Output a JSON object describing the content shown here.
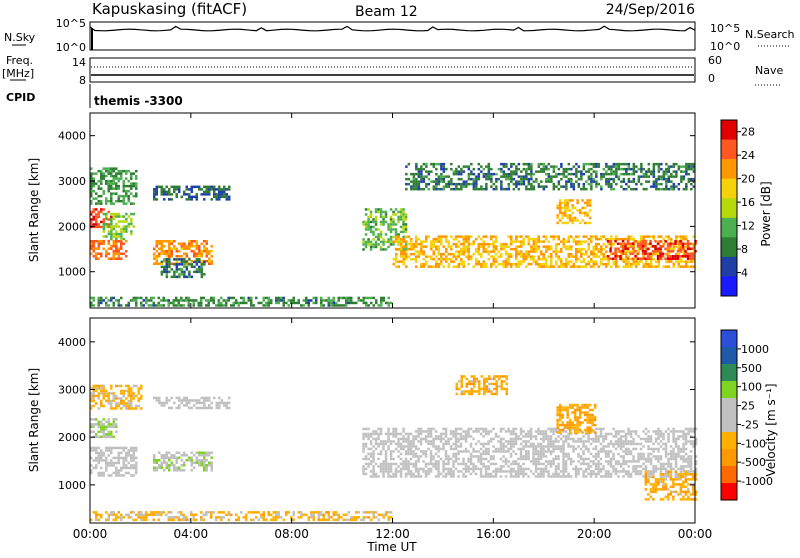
{
  "header": {
    "station": "Kapuskasing (fitACF)",
    "beam": "Beam 12",
    "date": "24/Sep/2016"
  },
  "panels": {
    "nsky_label": "N.Sky",
    "nsky_tick_top": "10^5",
    "nsky_tick_bottom": "10^0",
    "nsearch_label": "N.Search",
    "nsearch_tick_top": "10^5",
    "nsearch_tick_bottom": "10^0",
    "freq_label": "Freq.",
    "freq_unit": "[MHz]",
    "freq_tick_top": "14",
    "freq_tick_bottom": "8",
    "nave_label": "Nave",
    "nave_tick_top": "60",
    "nave_tick_bottom": "0",
    "cpid_label": "CPID",
    "cpid_value": "themis -3300"
  },
  "colors": {
    "power": [
      "#1a1aff",
      "#1f3fa6",
      "#2e7d32",
      "#4caf50",
      "#b5d90a",
      "#f5d20a",
      "#ff9800",
      "#ff5722",
      "#e00000"
    ],
    "velocity": [
      "#ff0000",
      "#ff6a00",
      "#ff9900",
      "#ffb000",
      "#c0c0c0",
      "#c0c0c0",
      "#7fd321",
      "#2e8b57",
      "#1e5aa8",
      "#2b4fd8"
    ]
  },
  "chart_data": [
    {
      "type": "heatmap",
      "name": "power",
      "ylabel": "Slant Range [km]",
      "yticks": [
        "1000",
        "2000",
        "3000",
        "4000"
      ],
      "ylim": [
        200,
        4500
      ],
      "colorbar_label": "Power [dB]",
      "colorbar_ticks": [
        "4",
        "8",
        "12",
        "16",
        "20",
        "24",
        "28"
      ],
      "colorbar_range": [
        0,
        30
      ],
      "regions": [
        {
          "t0": 0.0,
          "t1": 1.4,
          "r0": 1300,
          "r1": 1700,
          "value": 24
        },
        {
          "t0": 0.0,
          "t1": 0.8,
          "r0": 2000,
          "r1": 2400,
          "value": 26
        },
        {
          "t0": 0.5,
          "t1": 1.7,
          "r0": 1700,
          "r1": 2300,
          "value": 14
        },
        {
          "t0": 0.0,
          "t1": 1.8,
          "r0": 2500,
          "r1": 3300,
          "value": 10
        },
        {
          "t0": 2.5,
          "t1": 5.5,
          "r0": 2600,
          "r1": 2900,
          "value": 7
        },
        {
          "t0": 2.5,
          "t1": 4.8,
          "r0": 1200,
          "r1": 1700,
          "value": 22
        },
        {
          "t0": 2.8,
          "t1": 4.5,
          "r0": 900,
          "r1": 1300,
          "value": 8
        },
        {
          "t0": 0.0,
          "t1": 12.0,
          "r0": 250,
          "r1": 450,
          "value": 9
        },
        {
          "t0": 10.8,
          "t1": 12.5,
          "r0": 1500,
          "r1": 2400,
          "value": 12
        },
        {
          "t0": 12.0,
          "t1": 24.0,
          "r0": 1100,
          "r1": 1800,
          "value": 20
        },
        {
          "t0": 12.5,
          "t1": 24.0,
          "r0": 2800,
          "r1": 3400,
          "value": 8
        },
        {
          "t0": 18.5,
          "t1": 19.8,
          "r0": 2100,
          "r1": 2600,
          "value": 20
        },
        {
          "t0": 20.5,
          "t1": 24.0,
          "r0": 1300,
          "r1": 1700,
          "value": 26
        }
      ]
    },
    {
      "type": "heatmap",
      "name": "velocity",
      "ylabel": "Slant Range [km]",
      "yticks": [
        "1000",
        "2000",
        "3000",
        "4000"
      ],
      "ylim": [
        200,
        4500
      ],
      "colorbar_label": "Velocity [m s⁻¹]",
      "colorbar_ticks": [
        "1000",
        "500",
        "100",
        "25",
        "-25",
        "-100",
        "-500",
        "-1000"
      ],
      "colorbar_range": [
        -1200,
        1200
      ],
      "regions": [
        {
          "t0": 0.0,
          "t1": 1.8,
          "r0": 1200,
          "r1": 1800,
          "value": 0
        },
        {
          "t0": 0.0,
          "t1": 1.0,
          "r0": 2000,
          "r1": 2400,
          "value": 200
        },
        {
          "t0": 0.0,
          "t1": 2.0,
          "r0": 2600,
          "r1": 3100,
          "value": -300
        },
        {
          "t0": 2.5,
          "t1": 5.5,
          "r0": 2600,
          "r1": 2850,
          "value": 0
        },
        {
          "t0": 2.5,
          "t1": 4.8,
          "r0": 1300,
          "r1": 1700,
          "value": 150
        },
        {
          "t0": 0.0,
          "t1": 12.0,
          "r0": 250,
          "r1": 450,
          "value": -300
        },
        {
          "t0": 10.8,
          "t1": 24.0,
          "r0": 1200,
          "r1": 2200,
          "value": 0
        },
        {
          "t0": 14.5,
          "t1": 16.5,
          "r0": 2900,
          "r1": 3300,
          "value": -400
        },
        {
          "t0": 18.5,
          "t1": 20.0,
          "r0": 2100,
          "r1": 2700,
          "value": -500
        },
        {
          "t0": 22.0,
          "t1": 24.0,
          "r0": 700,
          "r1": 1300,
          "value": -400
        }
      ]
    }
  ],
  "xaxis": {
    "ticks": [
      "00:00",
      "04:00",
      "08:00",
      "12:00",
      "16:00",
      "20:00",
      "00:00"
    ],
    "label": "Time UT"
  }
}
